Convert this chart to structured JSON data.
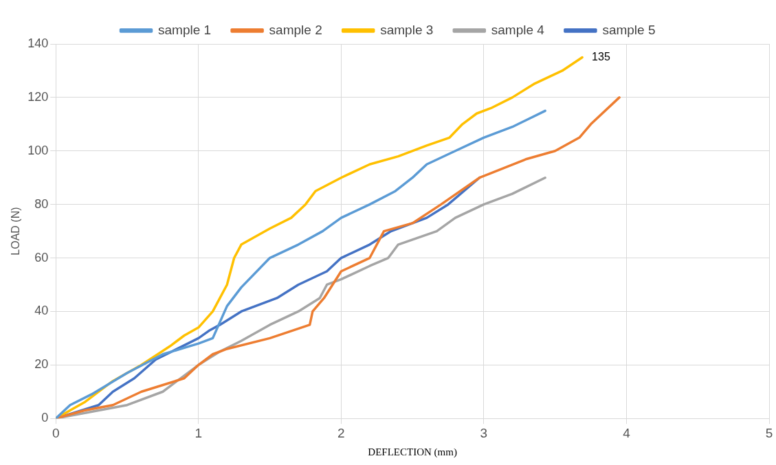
{
  "chart_data": {
    "type": "line",
    "xlabel": "DEFLECTION (mm)",
    "ylabel": "LOAD (N)",
    "xlim": [
      0,
      5
    ],
    "xticks": [
      0,
      1,
      2,
      3,
      4,
      5
    ],
    "ylim": [
      0,
      140
    ],
    "yticks": [
      0,
      20,
      40,
      60,
      80,
      100,
      120,
      140
    ],
    "grid": true,
    "legend": "top",
    "marker": "none",
    "line_style": "solid",
    "annotations": [
      {
        "text": "135",
        "x": 3.69,
        "y": 135
      }
    ],
    "series": [
      {
        "name": "sample 1",
        "color": "#5b9bd5",
        "x": [
          0,
          0.1,
          0.25,
          0.5,
          0.75,
          1.0,
          1.1,
          1.2,
          1.3,
          1.5,
          1.7,
          1.87,
          2.0,
          2.2,
          2.38,
          2.5,
          2.6,
          2.8,
          3.0,
          3.2,
          3.43
        ],
        "values": [
          0,
          5,
          9,
          17,
          24,
          28,
          30,
          42,
          49,
          60,
          65,
          70,
          75,
          80,
          85,
          90,
          95,
          100,
          105,
          109,
          115
        ]
      },
      {
        "name": "sample 2",
        "color": "#ed7d31",
        "x": [
          0,
          0.2,
          0.4,
          0.6,
          0.9,
          1.0,
          1.1,
          1.2,
          1.5,
          1.78,
          1.8,
          1.88,
          2.0,
          2.2,
          2.28,
          2.3,
          2.5,
          2.7,
          2.97,
          3.3,
          3.5,
          3.67,
          3.75,
          3.95
        ],
        "values": [
          0,
          3,
          5,
          10,
          15,
          20,
          24,
          26,
          30,
          35,
          40,
          45,
          55,
          60,
          68,
          70,
          73,
          80,
          90,
          97,
          100,
          105,
          110,
          120
        ]
      },
      {
        "name": "sample 3",
        "color": "#ffc000",
        "x": [
          0,
          0.2,
          0.4,
          0.6,
          0.8,
          0.9,
          1.0,
          1.1,
          1.2,
          1.25,
          1.3,
          1.5,
          1.65,
          1.75,
          1.82,
          2.0,
          2.2,
          2.4,
          2.6,
          2.76,
          2.85,
          2.95,
          3.05,
          3.2,
          3.35,
          3.55,
          3.69
        ],
        "values": [
          0,
          6,
          14,
          20,
          27,
          31,
          34,
          40,
          50,
          60,
          65,
          71,
          75,
          80,
          85,
          90,
          95,
          98,
          102,
          105,
          110,
          114,
          116,
          120,
          125,
          130,
          135
        ]
      },
      {
        "name": "sample 4",
        "color": "#a5a5a5",
        "x": [
          0,
          0.3,
          0.5,
          0.75,
          1.0,
          1.15,
          1.3,
          1.5,
          1.7,
          1.85,
          1.9,
          2.0,
          2.2,
          2.33,
          2.4,
          2.67,
          2.8,
          3.0,
          3.2,
          3.43
        ],
        "values": [
          0,
          3,
          5,
          10,
          20,
          25,
          29,
          35,
          40,
          45,
          50,
          52,
          57,
          60,
          65,
          70,
          75,
          80,
          84,
          90
        ]
      },
      {
        "name": "sample 5",
        "color": "#4472c4",
        "x": [
          0,
          0.3,
          0.4,
          0.55,
          0.7,
          1.0,
          1.08,
          1.15,
          1.3,
          1.55,
          1.7,
          1.9,
          2.0,
          2.2,
          2.35,
          2.6,
          2.75,
          2.97
        ],
        "values": [
          0,
          5,
          10,
          15,
          22,
          30,
          33,
          35,
          40,
          45,
          50,
          55,
          60,
          65,
          70,
          75,
          80,
          90
        ]
      }
    ]
  }
}
